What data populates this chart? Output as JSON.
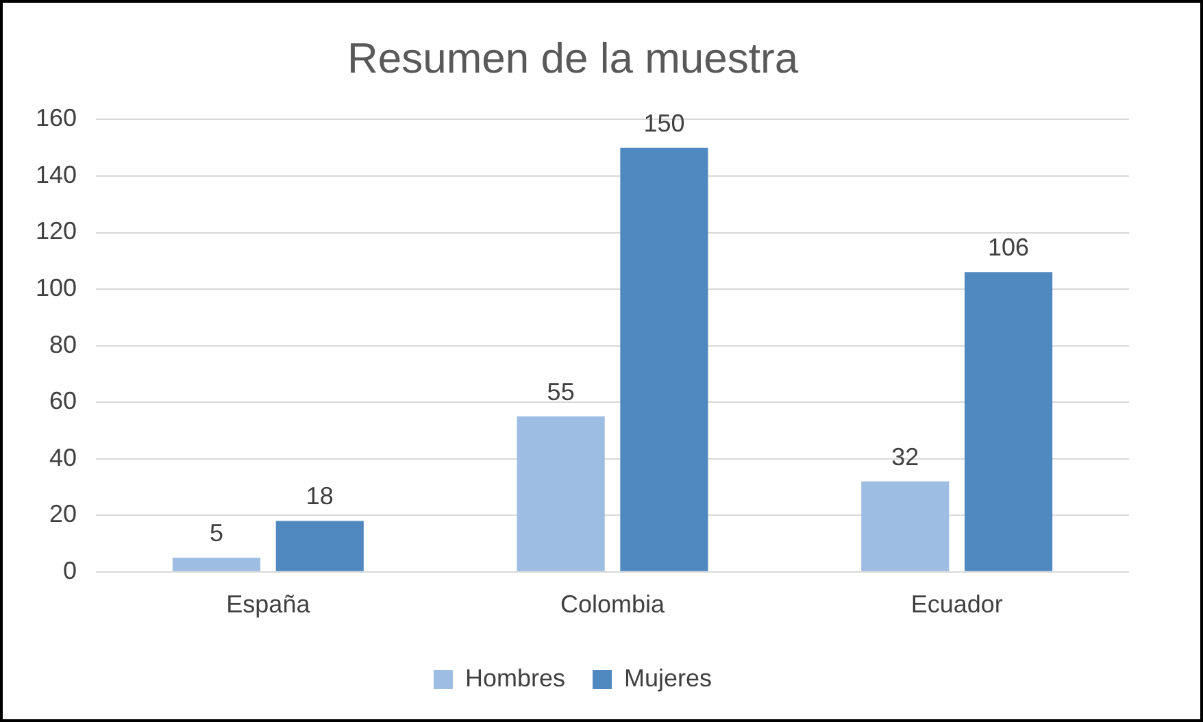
{
  "chart_data": {
    "type": "bar",
    "title": "Resumen de la muestra",
    "categories": [
      "España",
      "Colombia",
      "Ecuador"
    ],
    "series": [
      {
        "name": "Hombres",
        "color": "#9dbde2",
        "values": [
          5,
          55,
          32
        ]
      },
      {
        "name": "Mujeres",
        "color": "#4f89c0",
        "values": [
          18,
          150,
          106
        ]
      }
    ],
    "ylim": [
      0,
      160
    ],
    "yticks": [
      0,
      20,
      40,
      60,
      80,
      100,
      120,
      140,
      160
    ],
    "grid": "y",
    "legend": "bottom",
    "data_labels": true
  }
}
